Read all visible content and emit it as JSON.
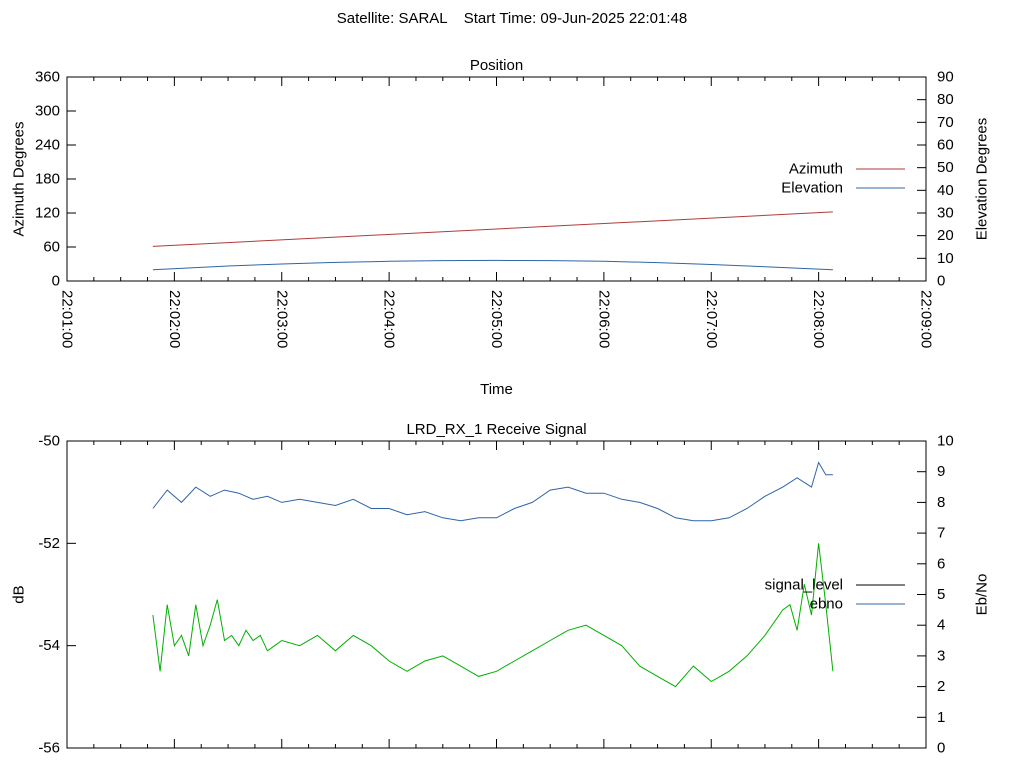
{
  "page_title": "Satellite: SARAL    Start Time: 09-Jun-2025 22:01:48",
  "colors": {
    "azimuth": "#b03a3a",
    "elevation": "#2f64a8",
    "signal_level": "#00b000",
    "ebno": "#2f64a8",
    "legend_signal_level": "#000000",
    "axis": "#000000"
  },
  "chart_data": [
    {
      "type": "line",
      "title": "Position",
      "xlabel": "Time",
      "ylabel": "Azimuth Degrees",
      "y2label": "Elevation Degrees",
      "x_ticks": [
        "22:01:00",
        "22:02:00",
        "22:03:00",
        "22:04:00",
        "22:05:00",
        "22:06:00",
        "22:07:00",
        "22:08:00",
        "22:09:00"
      ],
      "xlim": [
        "22:01:00",
        "22:09:00"
      ],
      "ylim": [
        0,
        360
      ],
      "y_ticks": [
        0,
        60,
        120,
        180,
        240,
        300,
        360
      ],
      "y2lim": [
        0,
        90
      ],
      "y2_ticks": [
        0,
        10,
        20,
        30,
        40,
        50,
        60,
        70,
        80,
        90
      ],
      "legend_position": "right",
      "series": [
        {
          "name": "Azimuth",
          "axis": "left",
          "x": [
            "22:01:48",
            "22:08:08"
          ],
          "y": [
            61,
            122
          ]
        },
        {
          "name": "Elevation",
          "axis": "right",
          "x": [
            "22:01:48",
            "22:02:30",
            "22:03:00",
            "22:03:30",
            "22:04:00",
            "22:04:30",
            "22:05:00",
            "22:05:30",
            "22:06:00",
            "22:06:30",
            "22:07:00",
            "22:07:30",
            "22:08:08"
          ],
          "y": [
            5.0,
            6.6,
            7.5,
            8.2,
            8.7,
            9.0,
            9.1,
            9.0,
            8.7,
            8.1,
            7.3,
            6.3,
            5.0
          ]
        }
      ]
    },
    {
      "type": "line",
      "title": "LRD_RX_1 Receive Signal",
      "ylabel": "dB",
      "y2label": "Eb/No",
      "xlim": [
        "22:01:00",
        "22:09:00"
      ],
      "ylim": [
        -56,
        -50
      ],
      "y_ticks": [
        -56,
        -54,
        -52,
        -50
      ],
      "y2lim": [
        0,
        10
      ],
      "y2_ticks": [
        0,
        1,
        2,
        3,
        4,
        5,
        6,
        7,
        8,
        9,
        10
      ],
      "legend_position": "right",
      "series": [
        {
          "name": "signal_level",
          "axis": "left",
          "x": [
            "22:01:48",
            "22:01:52",
            "22:01:56",
            "22:02:00",
            "22:02:04",
            "22:02:08",
            "22:02:12",
            "22:02:16",
            "22:02:20",
            "22:02:24",
            "22:02:28",
            "22:02:32",
            "22:02:36",
            "22:02:40",
            "22:02:44",
            "22:02:48",
            "22:02:52",
            "22:02:56",
            "22:03:00",
            "22:03:10",
            "22:03:20",
            "22:03:30",
            "22:03:40",
            "22:03:50",
            "22:04:00",
            "22:04:10",
            "22:04:20",
            "22:04:30",
            "22:04:40",
            "22:04:50",
            "22:05:00",
            "22:05:10",
            "22:05:20",
            "22:05:30",
            "22:05:40",
            "22:05:50",
            "22:06:00",
            "22:06:10",
            "22:06:20",
            "22:06:30",
            "22:06:40",
            "22:06:50",
            "22:07:00",
            "22:07:10",
            "22:07:20",
            "22:07:30",
            "22:07:40",
            "22:07:44",
            "22:07:48",
            "22:07:52",
            "22:07:56",
            "22:08:00",
            "22:08:04",
            "22:08:08"
          ],
          "y": [
            -53.4,
            -54.5,
            -53.2,
            -54.0,
            -53.8,
            -54.2,
            -53.2,
            -54.0,
            -53.6,
            -53.1,
            -53.9,
            -53.8,
            -54.0,
            -53.7,
            -53.9,
            -53.8,
            -54.1,
            -54.0,
            -53.9,
            -54.0,
            -53.8,
            -54.1,
            -53.8,
            -54.0,
            -54.3,
            -54.5,
            -54.3,
            -54.2,
            -54.4,
            -54.6,
            -54.5,
            -54.3,
            -54.1,
            -53.9,
            -53.7,
            -53.6,
            -53.8,
            -54.0,
            -54.4,
            -54.6,
            -54.8,
            -54.4,
            -54.7,
            -54.5,
            -54.2,
            -53.8,
            -53.3,
            -53.2,
            -53.7,
            -52.8,
            -53.4,
            -52.0,
            -53.2,
            -54.5
          ]
        },
        {
          "name": "ebno",
          "axis": "right",
          "x": [
            "22:01:48",
            "22:01:56",
            "22:02:04",
            "22:02:12",
            "22:02:20",
            "22:02:28",
            "22:02:36",
            "22:02:44",
            "22:02:52",
            "22:03:00",
            "22:03:10",
            "22:03:20",
            "22:03:30",
            "22:03:40",
            "22:03:50",
            "22:04:00",
            "22:04:10",
            "22:04:20",
            "22:04:30",
            "22:04:40",
            "22:04:50",
            "22:05:00",
            "22:05:10",
            "22:05:20",
            "22:05:30",
            "22:05:40",
            "22:05:50",
            "22:06:00",
            "22:06:10",
            "22:06:20",
            "22:06:30",
            "22:06:40",
            "22:06:50",
            "22:07:00",
            "22:07:10",
            "22:07:20",
            "22:07:30",
            "22:07:40",
            "22:07:48",
            "22:07:56",
            "22:08:00",
            "22:08:04",
            "22:08:08"
          ],
          "y": [
            7.8,
            8.4,
            8.0,
            8.5,
            8.2,
            8.4,
            8.3,
            8.1,
            8.2,
            8.0,
            8.1,
            8.0,
            7.9,
            8.1,
            7.8,
            7.8,
            7.6,
            7.7,
            7.5,
            7.4,
            7.5,
            7.5,
            7.8,
            8.0,
            8.4,
            8.5,
            8.3,
            8.3,
            8.1,
            8.0,
            7.8,
            7.5,
            7.4,
            7.4,
            7.5,
            7.8,
            8.2,
            8.5,
            8.8,
            8.5,
            9.3,
            8.9,
            8.9
          ]
        }
      ]
    }
  ]
}
